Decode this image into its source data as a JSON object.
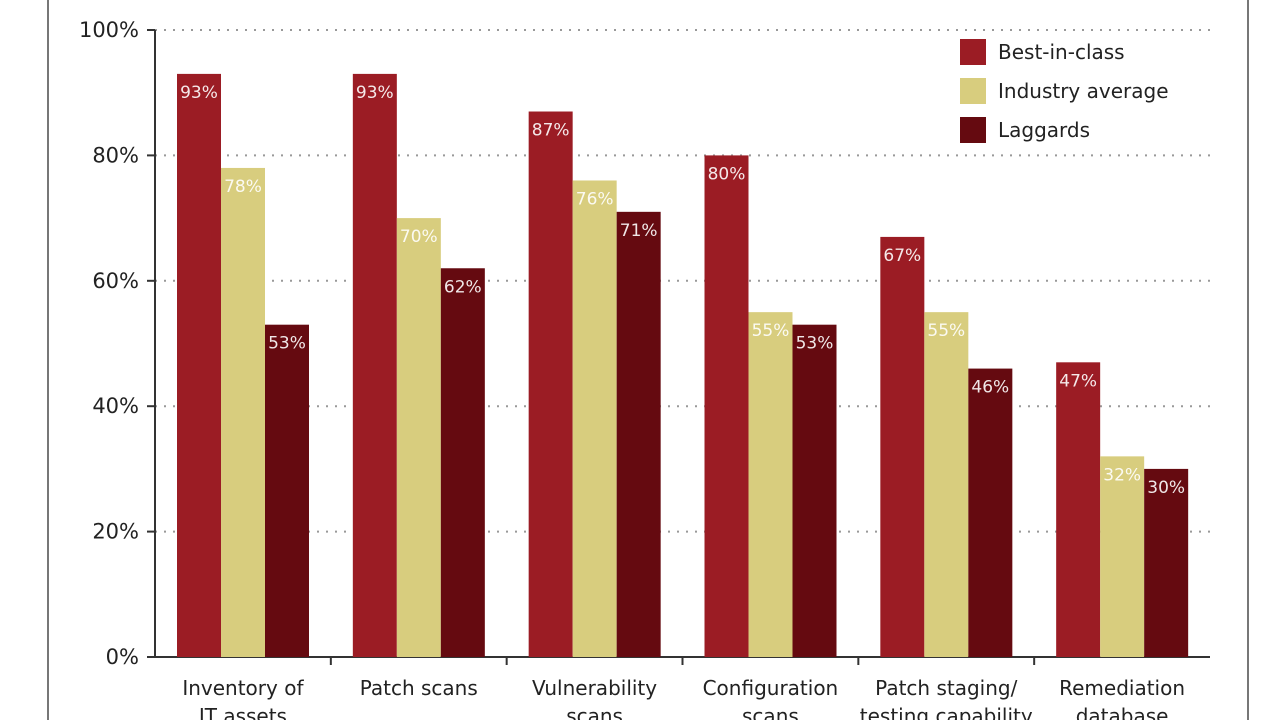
{
  "chart_data": {
    "type": "bar",
    "title": "",
    "xlabel": "",
    "ylabel": "",
    "ylim": [
      0,
      100
    ],
    "yticks": [
      0,
      20,
      40,
      60,
      80,
      100
    ],
    "ytick_suffix": "%",
    "value_suffix": "%",
    "grid": true,
    "legend_position": "top-right",
    "categories": [
      [
        "Inventory of",
        "IT assets"
      ],
      [
        "Patch scans"
      ],
      [
        "Vulnerability",
        "scans"
      ],
      [
        "Configuration",
        "scans"
      ],
      [
        "Patch staging/",
        "testing capability"
      ],
      [
        "Remediation",
        "database"
      ]
    ],
    "series": [
      {
        "name": "Best-in-class",
        "color": "#9b1c24",
        "values": [
          93,
          93,
          87,
          80,
          67,
          47
        ]
      },
      {
        "name": "Industry average",
        "color": "#d8cd7e",
        "values": [
          78,
          70,
          76,
          55,
          55,
          32
        ]
      },
      {
        "name": "Laggards",
        "color": "#650a10",
        "values": [
          53,
          62,
          71,
          53,
          46,
          30
        ]
      }
    ]
  }
}
